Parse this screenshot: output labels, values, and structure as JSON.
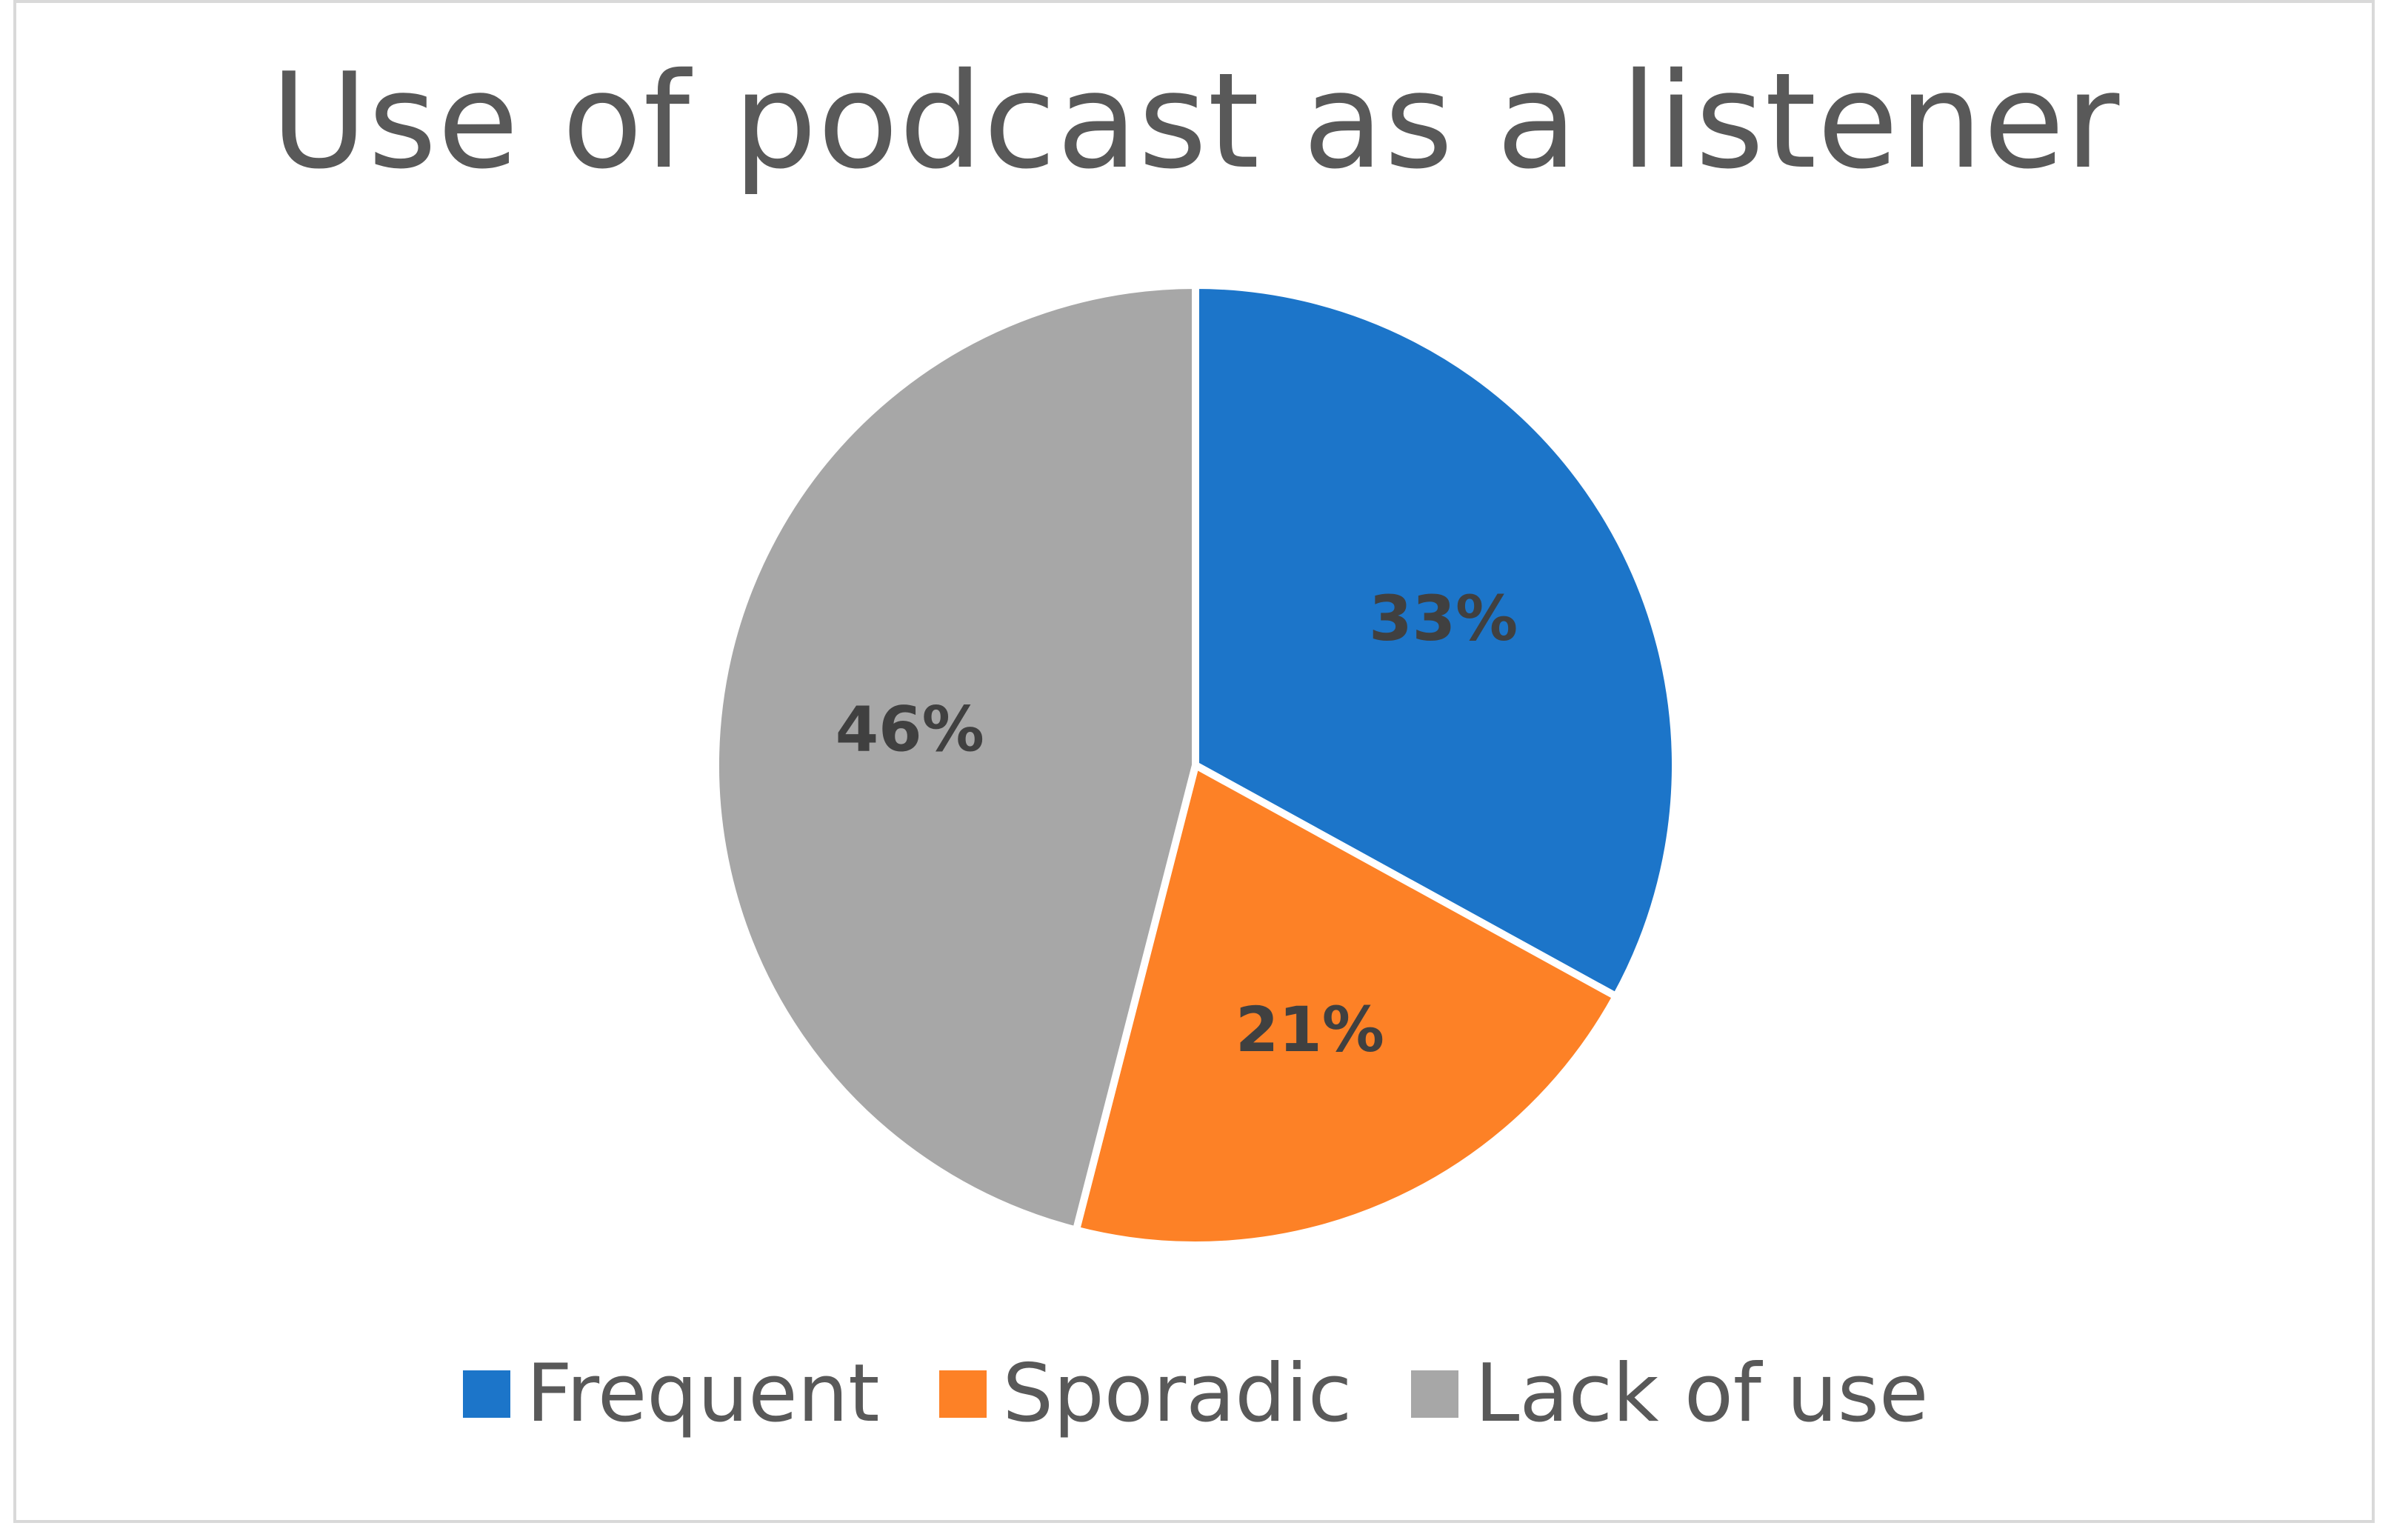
{
  "chart_data": {
    "type": "pie",
    "title": "Use of podcast as a listener",
    "slices": [
      {
        "name": "Frequent",
        "value": 33,
        "label": "33%",
        "color": "#1c75c9"
      },
      {
        "name": "Sporadic",
        "value": 21,
        "label": "21%",
        "color": "#fd8126"
      },
      {
        "name": "Lack of use",
        "value": 46,
        "label": "46%",
        "color": "#a7a7a7"
      }
    ],
    "legend_position": "bottom",
    "start_angle": "12 o'clock, clockwise"
  }
}
